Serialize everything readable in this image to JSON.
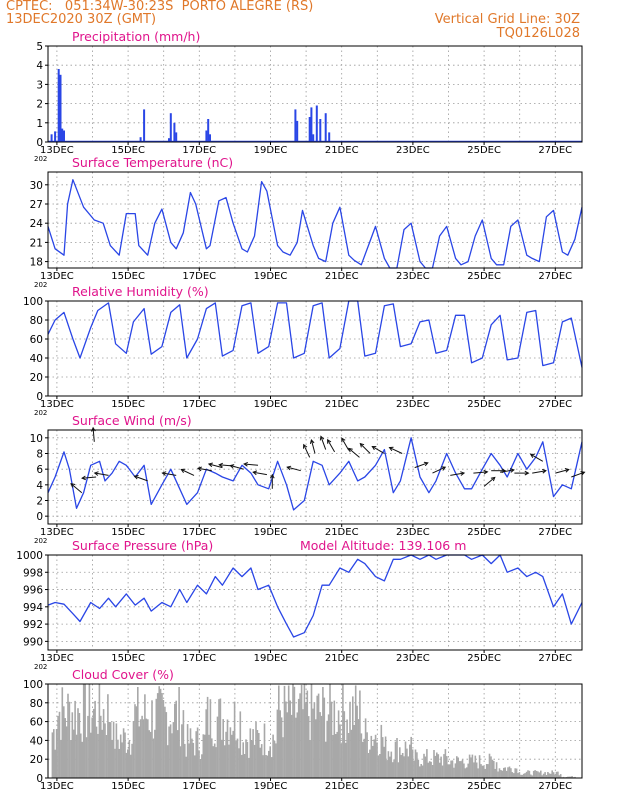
{
  "header": {
    "line1_left": "CPTEC:   051:34W-30:23S  PORTO ALEGRE (RS)",
    "line2_left": "13DEC2020 30Z (GMT)",
    "line1_right": "Vertical Grid Line: 30Z",
    "line2_right": "TQ0126L028",
    "model_altitude": "Model Altitude: 139.106  m"
  },
  "x_ticks": [
    "13DEC",
    "15DEC",
    "17DEC",
    "19DEC",
    "21DEC",
    "23DEC",
    "25DEC",
    "27DEC"
  ],
  "x_tick_prefix": "202",
  "colors": {
    "header": "#e0782a",
    "title": "#e0148c",
    "line": "#2a46e6",
    "cloud": "#a8a8a8",
    "grid": "#9a9a9a"
  },
  "chart_data": [
    {
      "id": "precip",
      "type": "bar",
      "title": "Precipitation  (mm/h)",
      "ylim": [
        0,
        5
      ],
      "yticks": [
        0,
        1,
        2,
        3,
        4,
        5
      ],
      "x": [
        13.1,
        13.2,
        13.3,
        13.35,
        13.4,
        13.45,
        15.6,
        15.7,
        16.4,
        16.45,
        16.55,
        16.6,
        17.45,
        17.5,
        17.55,
        19.95,
        20.0,
        20.35,
        20.4,
        20.45,
        20.55,
        20.65,
        20.8,
        20.9
      ],
      "values": [
        0.4,
        0.55,
        3.8,
        3.5,
        0.7,
        0.6,
        0.25,
        1.7,
        0.2,
        1.5,
        1.0,
        0.5,
        0.6,
        1.2,
        0.4,
        1.7,
        1.1,
        1.3,
        1.8,
        0.4,
        1.9,
        1.2,
        1.5,
        0.5
      ],
      "baseline": 0.05
    },
    {
      "id": "temp",
      "type": "line",
      "title": "Surface Temperature  (nC)",
      "ylim": [
        17,
        32
      ],
      "yticks": [
        18,
        21,
        24,
        27,
        30
      ],
      "x": [
        13.0,
        13.2,
        13.45,
        13.55,
        13.7,
        14.0,
        14.3,
        14.55,
        14.75,
        15.0,
        15.2,
        15.45,
        15.55,
        15.8,
        16.0,
        16.2,
        16.45,
        16.6,
        16.8,
        17.0,
        17.15,
        17.45,
        17.55,
        17.8,
        18.0,
        18.2,
        18.45,
        18.6,
        18.8,
        19.0,
        19.15,
        19.45,
        19.6,
        19.8,
        20.0,
        20.15,
        20.45,
        20.6,
        20.8,
        21.0,
        21.2,
        21.45,
        21.6,
        21.8,
        22.0,
        22.2,
        22.45,
        22.6,
        22.8,
        23.0,
        23.2,
        23.45,
        23.6,
        23.8,
        24.0,
        24.2,
        24.45,
        24.6,
        24.8,
        25.0,
        25.2,
        25.45,
        25.6,
        25.8,
        26.0,
        26.2,
        26.45,
        26.6,
        26.8,
        27.0,
        27.2,
        27.45,
        27.6,
        27.8,
        28.0
      ],
      "values": [
        23.5,
        20.0,
        19.0,
        27.0,
        30.8,
        26.5,
        24.5,
        24.0,
        20.5,
        19.0,
        25.5,
        25.5,
        20.5,
        19.0,
        24.0,
        26.2,
        21.0,
        20.0,
        22.5,
        28.8,
        27.0,
        20.0,
        20.5,
        27.5,
        28.0,
        24.0,
        20.0,
        19.5,
        22.0,
        30.5,
        29.0,
        20.5,
        19.5,
        19.0,
        21.0,
        26.0,
        20.5,
        18.5,
        18.0,
        24.0,
        26.5,
        19.0,
        18.2,
        17.5,
        20.5,
        23.5,
        18.5,
        17.0,
        17.0,
        23.0,
        24.0,
        18.0,
        17.0,
        17.0,
        22.0,
        23.5,
        18.5,
        17.5,
        18.0,
        22.0,
        24.5,
        18.5,
        17.5,
        17.5,
        23.5,
        24.5,
        19.0,
        18.5,
        18.0,
        25.0,
        26.0,
        19.5,
        19.0,
        21.5,
        26.5
      ]
    },
    {
      "id": "rh",
      "type": "line",
      "title": "Relative Humidity  (%)",
      "ylim": [
        0,
        100
      ],
      "yticks": [
        0,
        20,
        40,
        60,
        80,
        100
      ],
      "x": [
        13.0,
        13.2,
        13.45,
        13.7,
        13.9,
        14.2,
        14.4,
        14.7,
        14.9,
        15.2,
        15.4,
        15.7,
        15.9,
        16.2,
        16.45,
        16.7,
        16.9,
        17.2,
        17.45,
        17.7,
        17.9,
        18.2,
        18.45,
        18.7,
        18.9,
        19.2,
        19.45,
        19.7,
        19.9,
        20.2,
        20.45,
        20.7,
        20.9,
        21.2,
        21.45,
        21.7,
        21.9,
        22.2,
        22.45,
        22.7,
        22.9,
        23.2,
        23.45,
        23.7,
        23.9,
        24.2,
        24.45,
        24.7,
        24.9,
        25.2,
        25.45,
        25.7,
        25.9,
        26.2,
        26.45,
        26.7,
        26.9,
        27.2,
        27.45,
        27.7,
        28.0
      ],
      "values": [
        65,
        80,
        88,
        60,
        40,
        72,
        90,
        98,
        55,
        45,
        78,
        92,
        44,
        52,
        88,
        96,
        40,
        60,
        92,
        98,
        42,
        48,
        95,
        98,
        45,
        52,
        98,
        98,
        40,
        45,
        95,
        98,
        40,
        50,
        100,
        100,
        42,
        45,
        95,
        97,
        52,
        55,
        78,
        80,
        45,
        48,
        85,
        85,
        35,
        40,
        75,
        85,
        38,
        40,
        88,
        90,
        32,
        35,
        78,
        82,
        30
      ]
    },
    {
      "id": "wind",
      "type": "line",
      "title": "Surface Wind  (m/s)",
      "ylim": [
        -1,
        11
      ],
      "yticks": [
        0,
        2,
        4,
        6,
        8,
        10
      ],
      "x": [
        13.0,
        13.2,
        13.45,
        13.6,
        13.8,
        14.0,
        14.2,
        14.45,
        14.6,
        14.8,
        15.0,
        15.2,
        15.45,
        15.7,
        15.9,
        16.2,
        16.45,
        16.7,
        16.9,
        17.2,
        17.45,
        17.7,
        17.9,
        18.2,
        18.45,
        18.7,
        18.9,
        19.2,
        19.45,
        19.7,
        19.9,
        20.2,
        20.45,
        20.7,
        20.9,
        21.2,
        21.45,
        21.7,
        21.9,
        22.2,
        22.45,
        22.7,
        22.9,
        23.2,
        23.45,
        23.7,
        23.9,
        24.2,
        24.45,
        24.7,
        24.9,
        25.2,
        25.45,
        25.7,
        25.9,
        26.2,
        26.45,
        26.7,
        26.9,
        27.2,
        27.45,
        27.7,
        28.0
      ],
      "values": [
        3.0,
        5.0,
        8.2,
        6.0,
        1.0,
        3.0,
        6.5,
        7.0,
        4.5,
        5.5,
        7.0,
        6.5,
        5.0,
        6.5,
        1.5,
        4.0,
        6.0,
        3.5,
        1.5,
        3.0,
        6.0,
        5.5,
        5.0,
        4.5,
        6.5,
        5.5,
        4.0,
        3.5,
        7.0,
        4.0,
        0.8,
        2.0,
        7.0,
        6.5,
        4.0,
        5.5,
        7.0,
        4.5,
        5.0,
        6.5,
        8.5,
        3.0,
        4.5,
        10.0,
        5.0,
        3.0,
        4.5,
        8.0,
        5.5,
        3.5,
        3.5,
        6.0,
        8.0,
        6.5,
        5.0,
        8.0,
        6.0,
        7.5,
        9.5,
        2.5,
        4.0,
        3.5,
        9.5
      ]
    },
    {
      "id": "pres",
      "type": "line",
      "title": "Surface Pressure  (hPa)",
      "ylim": [
        989,
        1000
      ],
      "yticks": [
        990,
        992,
        994,
        996,
        998,
        1000
      ],
      "x": [
        13.0,
        13.2,
        13.45,
        13.7,
        13.9,
        14.2,
        14.45,
        14.7,
        14.9,
        15.2,
        15.45,
        15.7,
        15.9,
        16.2,
        16.45,
        16.7,
        16.9,
        17.2,
        17.45,
        17.7,
        17.9,
        18.2,
        18.45,
        18.7,
        18.9,
        19.2,
        19.45,
        19.7,
        19.9,
        20.2,
        20.45,
        20.7,
        20.9,
        21.2,
        21.45,
        21.7,
        21.9,
        22.2,
        22.45,
        22.7,
        22.9,
        23.2,
        23.45,
        23.7,
        23.9,
        24.2,
        24.45,
        24.7,
        24.9,
        25.2,
        25.45,
        25.7,
        25.9,
        26.2,
        26.45,
        26.7,
        26.9,
        27.2,
        27.45,
        27.7,
        28.0
      ],
      "values": [
        994.2,
        994.5,
        994.3,
        993.2,
        992.3,
        994.5,
        993.8,
        995.0,
        994.0,
        995.5,
        994.2,
        995.0,
        993.5,
        994.5,
        994.0,
        996.0,
        994.5,
        996.5,
        995.5,
        997.5,
        996.5,
        998.5,
        997.5,
        998.5,
        996.0,
        996.5,
        994.0,
        992.0,
        990.5,
        991.0,
        993.0,
        996.5,
        996.5,
        998.5,
        998.0,
        999.5,
        999.0,
        997.5,
        997.0,
        999.5,
        999.5,
        1000.0,
        999.5,
        1000.0,
        999.5,
        1000.0,
        1000.0,
        1000.0,
        999.5,
        1000.0,
        999.0,
        1000.0,
        998.0,
        998.5,
        997.5,
        998.0,
        997.5,
        994.0,
        995.5,
        992.0,
        994.5
      ]
    },
    {
      "id": "cloud",
      "type": "bar",
      "title": "Cloud Cover  (%)",
      "ylim": [
        0,
        100
      ],
      "yticks": [
        0,
        20,
        40,
        60,
        80,
        100
      ]
    }
  ]
}
